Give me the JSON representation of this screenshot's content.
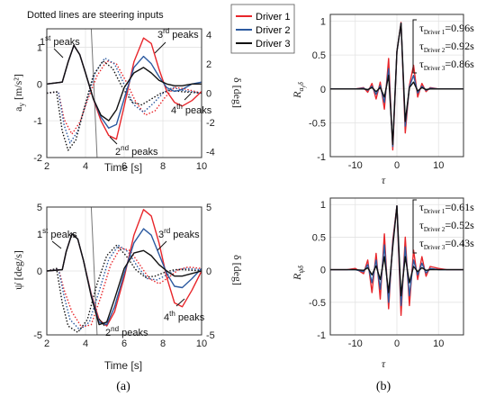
{
  "note": "Dotted lines are steering inputs",
  "colors": {
    "driver1": "#e8262b",
    "driver2": "#2c5aa0",
    "driver3": "#111111",
    "steer": "#777777"
  },
  "legend": {
    "items": [
      {
        "name": "Driver 1",
        "color": "#e8262b"
      },
      {
        "name": "Driver 2",
        "color": "#2c5aa0"
      },
      {
        "name": "Driver 3",
        "color": "#111111"
      }
    ]
  },
  "labels": {
    "a_ylabel": "a",
    "a_ylabel_sub": "y",
    "a_ylabel_unit": " [m/s²]",
    "a_xlabel": "Time [s]",
    "a_y2label": "δ [deg]",
    "a_first": "1",
    "a_first_sup": "st",
    "a_first_tail": " peaks",
    "a_second": "2",
    "a_second_sup": "nd",
    "a_second_tail": " peaks",
    "a_third": "3",
    "a_third_sup": "rd",
    "a_third_tail": " peaks",
    "a_fourth": "4",
    "a_fourth_sup": "th",
    "a_fourth_tail": " peaks",
    "c_ylabel": "ψ̇ [deg/s]",
    "c_xlabel": "Time [s]",
    "c_y2label": "δ [deg]",
    "c_first": "1",
    "c_first_sup": "st",
    "c_first_tail": " peaks",
    "c_second": "2",
    "c_second_sup": "nd",
    "c_second_tail": " peaks",
    "c_third": "3",
    "c_third_sup": "rd",
    "c_third_tail": " peaks",
    "c_fourth": "4",
    "c_fourth_sup": "th",
    "c_fourth_tail": " peaks",
    "b_ylabel": "R",
    "b_ylabel_sub": "a",
    "b_ylabel_subsub": "y",
    "b_ylabel_tail": "δ",
    "b_xlabel": "τ",
    "d_ylabel": "R",
    "d_ylabel_sub": "ψ̇δ",
    "d_xlabel": "τ",
    "b_tau": [
      {
        "pre": "τ",
        "sub": "Driver 1",
        "val": "=0.96s"
      },
      {
        "pre": "τ",
        "sub": "Driver 2",
        "val": "=0.92s"
      },
      {
        "pre": "τ",
        "sub": "Driver 3",
        "val": "=0.86s"
      }
    ],
    "d_tau": [
      {
        "pre": "τ",
        "sub": "Driver 1",
        "val": "=0.61s"
      },
      {
        "pre": "τ",
        "sub": "Driver 2",
        "val": "=0.52s"
      },
      {
        "pre": "τ",
        "sub": "Driver 3",
        "val": "=0.43s"
      }
    ],
    "caption_a": "(a)",
    "caption_b": "(b)"
  },
  "chart_data": [
    {
      "type": "line",
      "xlabel": "Time [s]",
      "ylabel": "a_y [m/s²]",
      "y2label": "δ [deg]",
      "xlim": [
        2,
        10
      ],
      "ylim": [
        -2,
        1.5
      ],
      "y2lim": [
        -4.4,
        4.4
      ],
      "xticks": [
        2,
        4,
        6,
        8,
        10
      ],
      "yticks": [
        -2,
        -1,
        0,
        1
      ],
      "y2ticks": [
        -4,
        -2,
        0,
        2,
        4
      ],
      "grid": true,
      "series": [
        {
          "name": "Driver 1",
          "axis": "left",
          "style": "solid",
          "x": [
            2,
            2.8,
            3.1,
            3.4,
            3.7,
            4.0,
            4.4,
            4.8,
            5.2,
            5.6,
            6.0,
            6.5,
            7.0,
            7.4,
            7.8,
            8.2,
            8.6,
            9.0,
            9.5,
            10
          ],
          "y": [
            0,
            0.05,
            0.6,
            1.05,
            0.8,
            0.3,
            -0.4,
            -1.0,
            -1.4,
            -1.5,
            -0.6,
            0.6,
            1.25,
            1.1,
            0.4,
            -0.2,
            -0.5,
            -0.6,
            -0.45,
            -0.2
          ]
        },
        {
          "name": "Driver 2",
          "axis": "left",
          "style": "solid",
          "x": [
            2,
            2.8,
            3.1,
            3.4,
            3.7,
            4.0,
            4.4,
            4.8,
            5.2,
            5.6,
            6.0,
            6.5,
            7.0,
            7.4,
            7.8,
            8.2,
            8.6,
            9.0,
            9.5,
            10
          ],
          "y": [
            0,
            0.05,
            0.6,
            1.05,
            0.8,
            0.3,
            -0.4,
            -0.9,
            -1.2,
            -1.1,
            -0.4,
            0.45,
            0.75,
            0.55,
            0.2,
            -0.1,
            -0.2,
            -0.15,
            0,
            0.05
          ]
        },
        {
          "name": "Driver 3",
          "axis": "left",
          "style": "solid",
          "x": [
            2,
            2.8,
            3.1,
            3.4,
            3.7,
            4.0,
            4.4,
            4.8,
            5.2,
            5.6,
            6.0,
            6.5,
            7.0,
            7.4,
            7.8,
            8.2,
            8.6,
            9.0,
            9.5,
            10
          ],
          "y": [
            0,
            0.05,
            0.6,
            1.05,
            0.8,
            0.3,
            -0.4,
            -0.85,
            -1.0,
            -0.7,
            -0.1,
            0.3,
            0.45,
            0.3,
            0.1,
            0,
            -0.05,
            -0.05,
            0,
            0
          ]
        },
        {
          "name": "Driver 1",
          "axis": "right",
          "style": "dotted",
          "x": [
            2,
            2.6,
            2.9,
            3.3,
            3.7,
            4.1,
            4.6,
            5.1,
            5.6,
            6.1,
            6.6,
            7.1,
            7.6,
            8.1,
            8.6,
            9.1,
            10
          ],
          "y": [
            0,
            0.1,
            -1.8,
            -2.8,
            -2.0,
            -0.5,
            1.2,
            2.2,
            2.0,
            0.8,
            -0.6,
            -1.5,
            -1.2,
            -0.3,
            0.4,
            0.3,
            0
          ]
        },
        {
          "name": "Driver 2",
          "axis": "right",
          "style": "dotted",
          "x": [
            2,
            2.6,
            2.9,
            3.2,
            3.6,
            4.0,
            4.5,
            5.0,
            5.5,
            6.0,
            6.5,
            7.0,
            7.5,
            8.0,
            8.5,
            9.0,
            10
          ],
          "y": [
            0,
            0.1,
            -2.2,
            -3.4,
            -2.6,
            -0.8,
            1.4,
            2.4,
            2.0,
            0.6,
            -0.8,
            -1.3,
            -0.7,
            0,
            0.4,
            0.2,
            0
          ]
        },
        {
          "name": "Driver 3",
          "axis": "right",
          "style": "dotted",
          "x": [
            2,
            2.5,
            2.8,
            3.1,
            3.5,
            3.9,
            4.4,
            4.9,
            5.4,
            5.9,
            6.4,
            6.9,
            7.4,
            7.9,
            8.4,
            9.0,
            10
          ],
          "y": [
            0,
            0.1,
            -2.6,
            -3.9,
            -3.2,
            -1.2,
            1.2,
            2.2,
            1.7,
            0.4,
            -0.6,
            -0.8,
            -0.4,
            0,
            0.2,
            0.1,
            0
          ]
        },
        {
          "name": "",
          "axis": "right",
          "style": "solid-gray",
          "x": [
            2,
            2.7,
            2.95,
            3.2,
            3.45,
            3.9,
            4.3,
            4.6,
            4.85,
            5.1,
            5.35,
            5.6
          ],
          "y": [
            4.4,
            4.4,
            4.4,
            4.4,
            4.4,
            4.4,
            4.4,
            -4.4,
            -4.4,
            -4.4,
            -4.4,
            -4.4
          ]
        }
      ]
    },
    {
      "type": "line",
      "xlabel": "τ",
      "ylabel": "R_{a_y δ}",
      "xlim": [
        -16,
        16
      ],
      "ylim": [
        -1,
        1.1
      ],
      "xticks": [
        -10,
        0,
        10
      ],
      "yticks": [
        -1,
        -0.5,
        0,
        0.5,
        1
      ],
      "grid": true,
      "series": [
        {
          "name": "Driver 1",
          "x": [
            -16,
            -10,
            -8,
            -7,
            -6,
            -5,
            -4,
            -3,
            -2,
            -1,
            0,
            1,
            2,
            3,
            4,
            5,
            6,
            7,
            8,
            10,
            16
          ],
          "y": [
            0,
            0,
            0.02,
            -0.05,
            0.08,
            -0.15,
            0.1,
            -0.3,
            0.45,
            -0.9,
            0.55,
            0.98,
            -0.65,
            0.05,
            0.35,
            -0.12,
            0.08,
            -0.04,
            0.02,
            0,
            0
          ]
        },
        {
          "name": "Driver 2",
          "x": [
            -16,
            -10,
            -8,
            -7,
            -6,
            -5,
            -4,
            -3,
            -2,
            -1,
            0,
            1,
            2,
            3,
            4,
            5,
            6,
            7,
            8,
            10,
            16
          ],
          "y": [
            0,
            0,
            0.01,
            -0.02,
            0.04,
            -0.08,
            0.05,
            -0.2,
            0.3,
            -0.85,
            0.55,
            0.97,
            -0.55,
            0.03,
            0.2,
            -0.06,
            0.04,
            -0.02,
            0.01,
            0,
            0
          ]
        },
        {
          "name": "Driver 3",
          "x": [
            -16,
            -10,
            -8,
            -7,
            -6,
            -5,
            -4,
            -3,
            -2,
            -1,
            0,
            1,
            2,
            3,
            4,
            5,
            6,
            7,
            8,
            10,
            16
          ],
          "y": [
            0,
            0,
            0,
            -0.01,
            0.02,
            -0.04,
            0.02,
            -0.12,
            0.2,
            -0.82,
            0.55,
            0.97,
            -0.48,
            0.02,
            0.1,
            -0.03,
            0.02,
            -0.01,
            0,
            0,
            0
          ]
        }
      ],
      "annotations": [
        "τDriver 1=0.96s",
        "τDriver 2=0.92s",
        "τDriver 3=0.86s"
      ]
    },
    {
      "type": "line",
      "xlabel": "Time [s]",
      "ylabel": "ψ̇ [deg/s]",
      "y2label": "δ [deg]",
      "xlim": [
        2,
        10
      ],
      "ylim": [
        -5,
        5
      ],
      "y2lim": [
        -5,
        5
      ],
      "xticks": [
        2,
        4,
        6,
        8,
        10
      ],
      "yticks": [
        -5,
        0,
        5
      ],
      "y2ticks": [
        -5,
        0,
        5
      ],
      "grid": true,
      "series": [
        {
          "name": "Driver 1",
          "axis": "left",
          "style": "solid",
          "x": [
            2,
            2.8,
            3.0,
            3.3,
            3.6,
            3.9,
            4.3,
            4.7,
            5.1,
            5.5,
            6.0,
            6.5,
            7.0,
            7.4,
            7.8,
            8.2,
            8.6,
            9.0,
            9.5,
            10
          ],
          "y": [
            0,
            0.1,
            1.5,
            2.9,
            2.5,
            0.8,
            -1.8,
            -3.8,
            -4.3,
            -3.2,
            -0.5,
            2.8,
            4.8,
            4.3,
            2.2,
            -0.5,
            -2.5,
            -2.8,
            -1.5,
            0
          ]
        },
        {
          "name": "Driver 2",
          "axis": "left",
          "style": "solid",
          "x": [
            2,
            2.8,
            3.0,
            3.3,
            3.6,
            3.9,
            4.3,
            4.7,
            5.1,
            5.5,
            6.0,
            6.5,
            7.0,
            7.4,
            7.8,
            8.2,
            8.6,
            9.0,
            9.5,
            10
          ],
          "y": [
            0,
            0.1,
            1.5,
            2.9,
            2.5,
            0.8,
            -1.9,
            -4.0,
            -4.2,
            -2.8,
            -0.2,
            2.2,
            3.3,
            2.8,
            1.3,
            -0.2,
            -1.2,
            -1.3,
            -0.6,
            0.2
          ]
        },
        {
          "name": "Driver 3",
          "axis": "left",
          "style": "solid",
          "x": [
            2,
            2.8,
            3.0,
            3.3,
            3.6,
            3.9,
            4.3,
            4.7,
            5.1,
            5.5,
            6.0,
            6.5,
            7.0,
            7.4,
            7.8,
            8.2,
            8.6,
            9.0,
            9.5,
            10
          ],
          "y": [
            0,
            0.1,
            1.5,
            2.9,
            2.5,
            0.8,
            -2.0,
            -4.2,
            -4.0,
            -2.2,
            0.2,
            1.4,
            1.6,
            1.2,
            0.5,
            0,
            -0.4,
            -0.4,
            -0.2,
            0
          ]
        },
        {
          "name": "Driver 1",
          "axis": "right",
          "style": "dotted",
          "x": [
            2,
            2.6,
            2.9,
            3.3,
            3.8,
            4.3,
            4.8,
            5.3,
            5.8,
            6.3,
            6.8,
            7.3,
            7.8,
            8.3,
            8.8,
            9.3,
            10
          ],
          "y": [
            0,
            0.2,
            -1.5,
            -3.2,
            -4.4,
            -4.2,
            -2.0,
            0.5,
            1.8,
            1.6,
            0.5,
            -0.6,
            -1.0,
            -0.5,
            0.1,
            0.3,
            0.2
          ]
        },
        {
          "name": "Driver 2",
          "axis": "right",
          "style": "dotted",
          "x": [
            2,
            2.6,
            2.9,
            3.2,
            3.7,
            4.2,
            4.7,
            5.2,
            5.7,
            6.2,
            6.7,
            7.2,
            7.7,
            8.2,
            8.7,
            9.2,
            10
          ],
          "y": [
            0,
            0.2,
            -2.0,
            -3.8,
            -4.6,
            -4.0,
            -1.6,
            0.9,
            2.0,
            1.5,
            0.3,
            -0.6,
            -0.7,
            -0.3,
            0.1,
            0.2,
            0.1
          ]
        },
        {
          "name": "Driver 3",
          "axis": "right",
          "style": "dotted",
          "x": [
            2,
            2.5,
            2.8,
            3.1,
            3.6,
            4.1,
            4.6,
            5.1,
            5.6,
            6.1,
            6.6,
            7.1,
            7.6,
            8.1,
            8.6,
            9.1,
            10
          ],
          "y": [
            0,
            0.2,
            -2.5,
            -4.3,
            -4.8,
            -3.8,
            -1.0,
            1.2,
            2.0,
            1.2,
            0.1,
            -0.5,
            -0.4,
            -0.1,
            0.1,
            0.1,
            0
          ]
        },
        {
          "name": "",
          "axis": "right",
          "style": "solid-gray",
          "x": [
            2,
            2.7,
            2.95,
            4.3,
            4.6,
            4.85,
            5.6
          ],
          "y": [
            5,
            5,
            5,
            5,
            -5,
            -5,
            -5
          ]
        }
      ]
    },
    {
      "type": "line",
      "xlabel": "τ",
      "ylabel": "R_{ψ̇δ}",
      "xlim": [
        -16,
        16
      ],
      "ylim": [
        -1,
        1.1
      ],
      "xticks": [
        -10,
        0,
        10
      ],
      "yticks": [
        -1,
        -0.5,
        0,
        0.5,
        1
      ],
      "grid": true,
      "series": [
        {
          "name": "Driver 1",
          "x": [
            -16,
            -12,
            -10,
            -8,
            -7,
            -6,
            -5,
            -4,
            -3,
            -2,
            -1,
            0,
            1,
            2,
            3,
            4,
            5,
            6,
            7,
            8,
            10,
            12,
            16
          ],
          "y": [
            0,
            0,
            0.02,
            -0.06,
            0.15,
            -0.35,
            0.25,
            -0.45,
            0.55,
            -0.6,
            0.45,
            0.98,
            -0.7,
            0.5,
            -0.55,
            0.3,
            -0.15,
            0.2,
            -0.1,
            0.05,
            0.02,
            0,
            0
          ]
        },
        {
          "name": "Driver 2",
          "x": [
            -16,
            -12,
            -10,
            -8,
            -7,
            -6,
            -5,
            -4,
            -3,
            -2,
            -1,
            0,
            1,
            2,
            3,
            4,
            5,
            6,
            7,
            8,
            10,
            12,
            16
          ],
          "y": [
            0,
            0,
            0,
            -0.03,
            0.08,
            -0.2,
            0.15,
            -0.3,
            0.38,
            -0.5,
            0.4,
            0.98,
            -0.55,
            0.35,
            -0.4,
            0.15,
            -0.08,
            0.1,
            -0.05,
            0.02,
            0,
            0,
            0
          ]
        },
        {
          "name": "Driver 3",
          "x": [
            -16,
            -12,
            -10,
            -8,
            -7,
            -6,
            -5,
            -4,
            -3,
            -2,
            -1,
            0,
            1,
            2,
            3,
            4,
            5,
            6,
            7,
            8,
            10,
            12,
            16
          ],
          "y": [
            0,
            0,
            0,
            -0.01,
            0.03,
            -0.08,
            0.06,
            -0.15,
            0.2,
            -0.35,
            0.35,
            0.98,
            -0.4,
            0.2,
            -0.2,
            0.05,
            -0.03,
            0.03,
            -0.01,
            0,
            0,
            0,
            0
          ]
        }
      ],
      "annotations": [
        "τDriver 1=0.61s",
        "τDriver 2=0.52s",
        "τDriver 3=0.43s"
      ]
    }
  ]
}
